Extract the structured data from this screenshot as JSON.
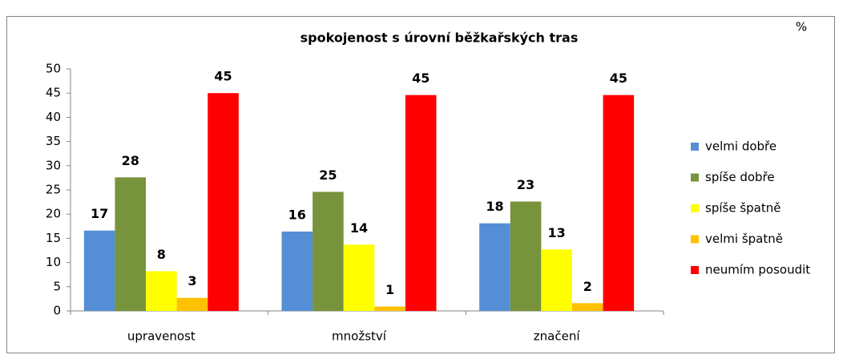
{
  "chart_data": {
    "type": "bar",
    "title": "spokojenost s úrovní běžkařských tras",
    "unit": "%",
    "categories": [
      "upravenost",
      "množství",
      "značení"
    ],
    "series": [
      {
        "name": "velmi dobře",
        "color": "#558ed5",
        "values": [
          16.6,
          16.4,
          18.1
        ],
        "value_labels": [
          "17",
          "16",
          "18"
        ]
      },
      {
        "name": "spíše dobře",
        "color": "#77933c",
        "values": [
          27.6,
          24.6,
          22.6
        ],
        "value_labels": [
          "28",
          "25",
          "23"
        ]
      },
      {
        "name": "spíše špatně",
        "color": "#ffff00",
        "values": [
          8.2,
          13.7,
          12.7
        ],
        "value_labels": [
          "8",
          "14",
          "13"
        ]
      },
      {
        "name": "velmi špatně",
        "color": "#ffc000",
        "values": [
          2.7,
          0.9,
          1.6
        ],
        "value_labels": [
          "3",
          "1",
          "2"
        ]
      },
      {
        "name": "neumím posoudit",
        "color": "#ff0000",
        "values": [
          45,
          44.6,
          44.6
        ],
        "value_labels": [
          "45",
          "45",
          "45"
        ]
      }
    ],
    "ylim": [
      0,
      50
    ],
    "yticks": [
      0,
      5,
      10,
      15,
      20,
      25,
      30,
      35,
      40,
      45,
      50
    ],
    "grid": false,
    "legend": "right"
  }
}
